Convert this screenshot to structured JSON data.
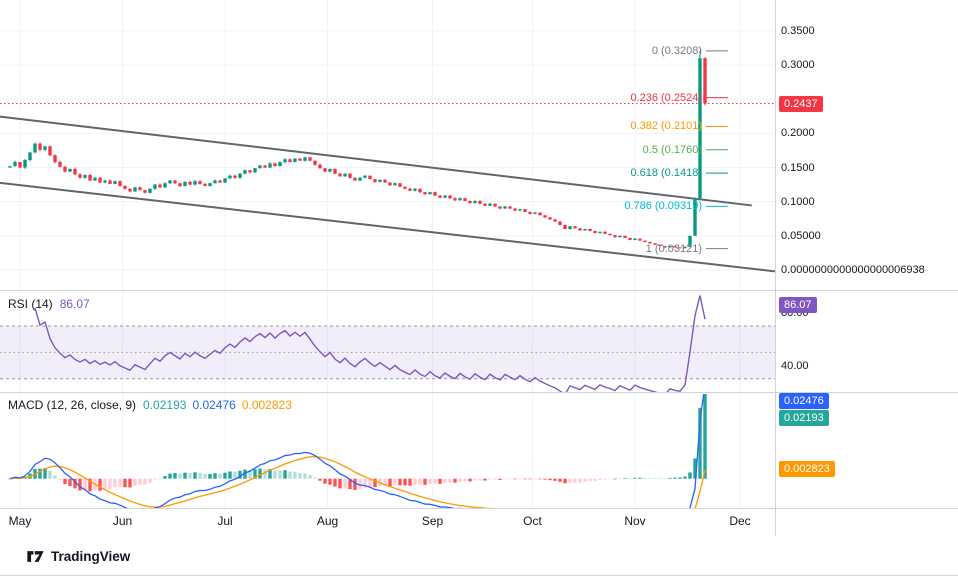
{
  "colors": {
    "up": "#089981",
    "down": "#F23645",
    "grid": "#F0F3FA",
    "axis_line": "#D1D4DC",
    "text": "#131722",
    "muted": "#787B86",
    "channel": "#62656E",
    "rsi_line": "#7E57C2",
    "rsi_band_fill": "rgba(126,87,194,0.10)",
    "macd_line": "#2962FF",
    "signal_line": "#FF9800",
    "hist_up": "#26A69A",
    "hist_up_weak": "#B2DFDB",
    "hist_down": "#FF5252",
    "hist_down_weak": "#FFCDD2",
    "price_badge_bg": "#F23645",
    "rsi_badge_bg": "#7E57C2"
  },
  "attribution": {
    "brand": "TradingView"
  },
  "chart_data": [
    {
      "type": "candlestick",
      "name": "price-pane",
      "x_categories_months": [
        "May",
        "Jun",
        "Jul",
        "Aug",
        "Sep",
        "Oct",
        "Nov",
        "Dec"
      ],
      "open_first": 0.15,
      "closes": [
        0.152,
        0.158,
        0.15,
        0.161,
        0.172,
        0.185,
        0.176,
        0.181,
        0.168,
        0.158,
        0.151,
        0.144,
        0.148,
        0.14,
        0.135,
        0.139,
        0.131,
        0.135,
        0.128,
        0.131,
        0.126,
        0.13,
        0.123,
        0.119,
        0.115,
        0.121,
        0.117,
        0.113,
        0.119,
        0.125,
        0.121,
        0.127,
        0.131,
        0.127,
        0.123,
        0.129,
        0.125,
        0.13,
        0.126,
        0.123,
        0.127,
        0.131,
        0.128,
        0.134,
        0.138,
        0.135,
        0.141,
        0.146,
        0.143,
        0.149,
        0.153,
        0.15,
        0.156,
        0.152,
        0.158,
        0.162,
        0.158,
        0.163,
        0.16,
        0.165,
        0.16,
        0.154,
        0.149,
        0.144,
        0.148,
        0.141,
        0.137,
        0.141,
        0.135,
        0.131,
        0.135,
        0.138,
        0.133,
        0.129,
        0.132,
        0.128,
        0.124,
        0.127,
        0.122,
        0.119,
        0.116,
        0.119,
        0.114,
        0.111,
        0.114,
        0.109,
        0.106,
        0.109,
        0.105,
        0.102,
        0.105,
        0.101,
        0.098,
        0.101,
        0.097,
        0.094,
        0.097,
        0.093,
        0.09,
        0.093,
        0.09,
        0.087,
        0.089,
        0.085,
        0.082,
        0.084,
        0.08,
        0.077,
        0.074,
        0.071,
        0.066,
        0.06,
        0.064,
        0.061,
        0.058,
        0.06,
        0.057,
        0.054,
        0.056,
        0.053,
        0.051,
        0.048,
        0.05,
        0.047,
        0.044,
        0.046,
        0.043,
        0.041,
        0.039,
        0.037,
        0.035,
        0.033,
        0.035,
        0.033,
        0.032,
        0.034,
        0.05,
        0.105,
        0.31,
        0.2437
      ],
      "spike_high": 0.3208,
      "ylim": [
        -0.0278,
        0.3952
      ],
      "y_ticks": [
        {
          "label": "0.3500",
          "value": 0.35
        },
        {
          "label": "0.3000",
          "value": 0.3
        },
        {
          "label": "0.2000",
          "value": 0.2
        },
        {
          "label": "0.1500",
          "value": 0.15
        },
        {
          "label": "0.1000",
          "value": 0.1
        },
        {
          "label": "0.05000",
          "value": 0.05
        },
        {
          "label": "0.0000000000000000006938",
          "value": 0
        }
      ],
      "price_badge": {
        "label": "0.2437",
        "value": 0.2437
      },
      "price_line": {
        "value": 0.2437,
        "color": "#F23645",
        "style": "dotted"
      },
      "fib_levels": [
        {
          "label": "0 (0.3208)",
          "value": 0.3208,
          "color": "#787B86"
        },
        {
          "label": "0.236 (0.2524)",
          "value": 0.2524,
          "color": "#F23645"
        },
        {
          "label": "0.382 (0.2101)",
          "value": 0.2101,
          "color": "#FF9800"
        },
        {
          "label": "0.5 (0.1760)",
          "value": 0.176,
          "color": "#4CAF50"
        },
        {
          "label": "0.618 (0.1418)",
          "value": 0.1418,
          "color": "#089981"
        },
        {
          "label": "0.786 (0.09319)",
          "value": 0.09319,
          "color": "#00BCD4"
        },
        {
          "label": "1 (0.03121)",
          "value": 0.03121,
          "color": "#787B86"
        }
      ],
      "channel": {
        "upper": [
          [
            0.0,
            0.2245
          ],
          [
            0.97,
            0.0945
          ]
        ],
        "lower": [
          [
            0.0,
            0.1275
          ],
          [
            1.0,
            -0.002
          ]
        ]
      }
    },
    {
      "type": "line",
      "name": "RSI",
      "title": "RSI (14)",
      "period": 14,
      "last_value": 86.07,
      "value_label": "86.07",
      "badge": {
        "label": "86.07",
        "value": 86.07
      },
      "bands": {
        "upper": 70,
        "middle": 50,
        "lower": 30
      },
      "range": [
        20,
        95
      ],
      "y_ticks": [
        {
          "label": "80.00",
          "value": 80
        },
        {
          "label": "40.00",
          "value": 40
        }
      ]
    },
    {
      "type": "macd",
      "name": "MACD",
      "title": "MACD (12, 26, close, 9)",
      "params": {
        "fast": 12,
        "slow": 26,
        "source": "close",
        "signal": 9
      },
      "last": {
        "histogram": 0.02193,
        "macd": 0.02476,
        "signal": 0.002823
      },
      "header_values": [
        {
          "label": "0.02193",
          "color": "#26A69A"
        },
        {
          "label": "0.02476",
          "color": "#2962FF"
        },
        {
          "label": "0.002823",
          "color": "#FF9800"
        }
      ],
      "badges": [
        {
          "label": "0.02476",
          "value": 0.02476,
          "color": "#2962FF"
        },
        {
          "label": "0.02193",
          "value": 0.02193,
          "color": "#26A69A"
        },
        {
          "label": "0.002823",
          "value": 0.002823,
          "color": "#FF9800"
        }
      ],
      "range": [
        -0.009,
        0.026
      ]
    }
  ]
}
